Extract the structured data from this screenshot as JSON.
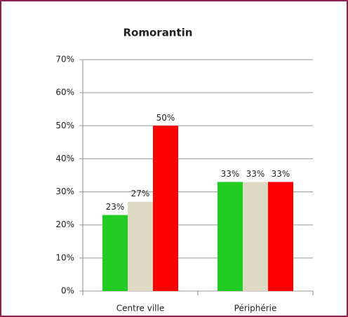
{
  "chart_data": {
    "type": "bar",
    "title": "Romorantin",
    "categories": [
      "Centre ville",
      "Périphérie"
    ],
    "series": [
      {
        "color": "#22cc22",
        "values": [
          23,
          33
        ],
        "value_labels": [
          "23%",
          "33%"
        ]
      },
      {
        "color": "#ddd9c3",
        "values": [
          27,
          33
        ],
        "value_labels": [
          "27%",
          "33%"
        ]
      },
      {
        "color": "#ff0000",
        "values": [
          50,
          33
        ],
        "value_labels": [
          "50%",
          "33%"
        ]
      }
    ],
    "ylim": [
      0,
      70
    ],
    "yticks": [
      {
        "value": 0,
        "label": "0%"
      },
      {
        "value": 10,
        "label": "10%"
      },
      {
        "value": 20,
        "label": "20%"
      },
      {
        "value": 30,
        "label": "30%"
      },
      {
        "value": 40,
        "label": "40%"
      },
      {
        "value": 50,
        "label": "50%"
      },
      {
        "value": 60,
        "label": "60%"
      },
      {
        "value": 70,
        "label": "70%"
      }
    ],
    "grid": true
  }
}
